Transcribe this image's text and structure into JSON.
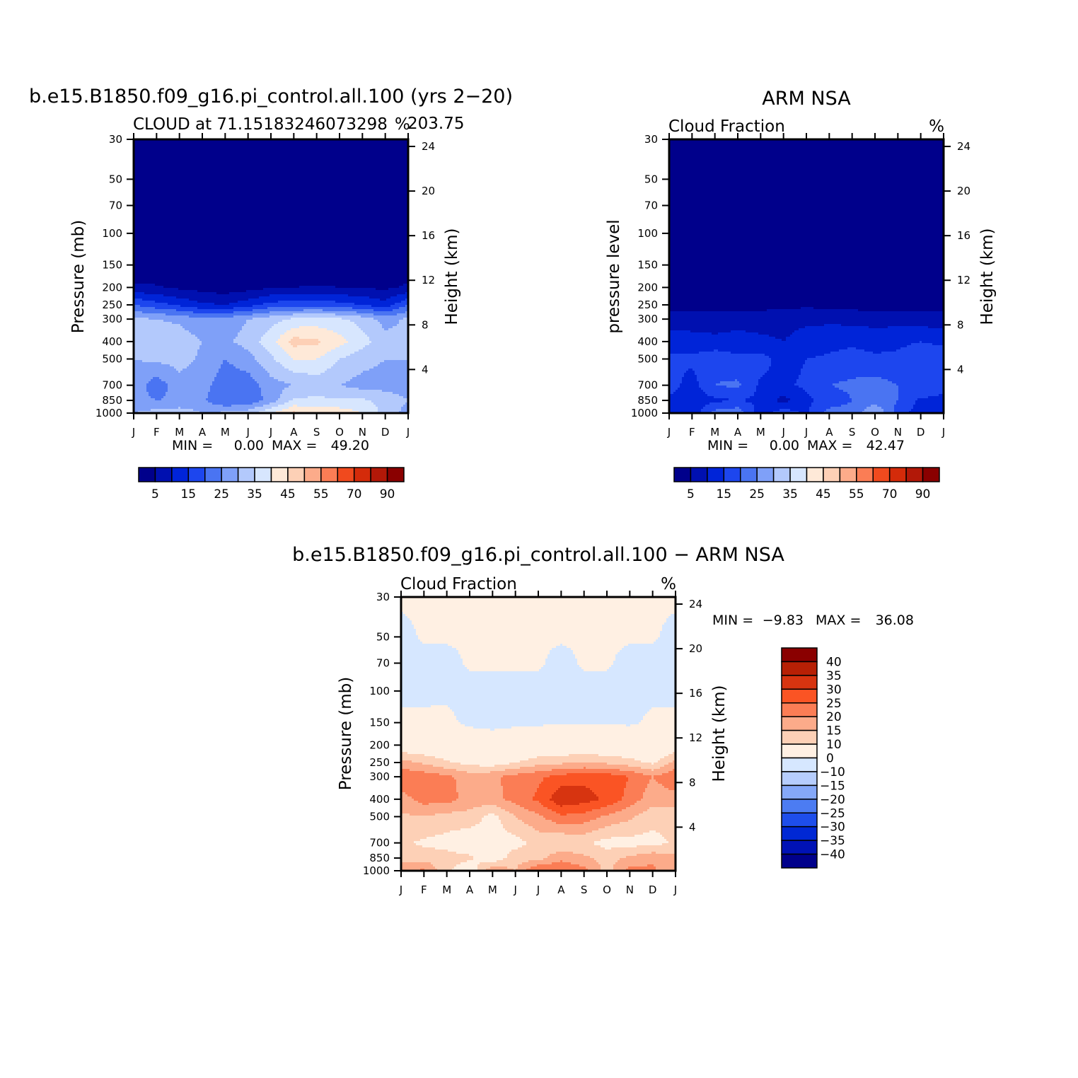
{
  "palette": {
    "abs": [
      "#00008b",
      "#0010b0",
      "#0024d8",
      "#1d46ee",
      "#4a74f2",
      "#7fa0f8",
      "#b3c9fc",
      "#d7e6fe",
      "#fee9d8",
      "#fdd0b6",
      "#fcab8a",
      "#fb7d55",
      "#f04a1e",
      "#d42b0a",
      "#b21808",
      "#8a0000"
    ],
    "diff": [
      "#00008b",
      "#0012b5",
      "#0028d4",
      "#1e4eeb",
      "#4c7cf2",
      "#85a8f8",
      "#b6cdfd",
      "#d6e7ff",
      "#fff0e3",
      "#fdd0b6",
      "#fcab8a",
      "#fb7d55",
      "#fa5424",
      "#d73410",
      "#b72005",
      "#8a0000"
    ]
  },
  "chart_data": [
    {
      "id": "model",
      "type": "contour",
      "title": "b.e15.B1850.f09_g16.pi_control.all.100 (yrs 2−20)",
      "subtitle_left": "CLOUD at 71.15183246073298",
      "subtitle_overlap": "%",
      "subtitle_right": "203.75",
      "ylabel": "Pressure (mb)",
      "ylabel_right": "Height (km)",
      "months": [
        "J",
        "F",
        "M",
        "A",
        "M",
        "J",
        "J",
        "A",
        "S",
        "O",
        "N",
        "D",
        "J"
      ],
      "pressure_levels": [
        30,
        50,
        70,
        100,
        150,
        200,
        250,
        300,
        400,
        500,
        700,
        850,
        1000
      ],
      "pressure_ticks": [
        "30",
        "50",
        "70",
        "100",
        "150",
        "200",
        "250",
        "300",
        "400",
        "500",
        "700",
        "850",
        "1000"
      ],
      "height_ticks_km": [
        24,
        20,
        16,
        12,
        8,
        4
      ],
      "height_tick_labels": [
        "24",
        "20",
        "16",
        "12",
        "8",
        "4"
      ],
      "levels": [
        5,
        10,
        15,
        20,
        25,
        30,
        35,
        40,
        45,
        50,
        55,
        60,
        70,
        80,
        90
      ],
      "colorbar_labels": [
        "5",
        "15",
        "25",
        "35",
        "45",
        "55",
        "70",
        "90"
      ],
      "min_label": "MIN =",
      "min_value": "0.00",
      "max_label": "MAX =",
      "max_value": "49.20",
      "values_percent": [
        [
          0,
          0,
          0,
          0,
          0,
          0,
          0,
          0,
          0,
          0,
          0,
          0,
          0
        ],
        [
          0,
          0,
          0,
          0,
          0,
          0,
          0,
          0,
          0,
          0,
          0,
          0,
          0
        ],
        [
          0,
          0,
          0,
          0,
          0,
          0,
          0,
          0,
          0,
          0,
          0,
          0,
          0
        ],
        [
          0,
          0,
          0,
          0,
          0,
          0,
          0,
          0,
          0,
          0,
          0,
          0,
          0
        ],
        [
          1,
          1,
          1,
          0.5,
          0.5,
          0.5,
          0.5,
          1,
          1,
          1,
          1,
          0.5,
          1
        ],
        [
          6,
          5.5,
          4,
          3,
          2,
          3,
          4.5,
          5,
          5.5,
          5,
          4.5,
          4,
          6
        ],
        [
          20,
          17,
          14,
          11,
          10,
          13,
          17,
          18,
          18.5,
          17,
          15,
          12,
          20
        ],
        [
          31,
          30,
          29,
          26,
          27,
          30,
          33,
          36,
          37,
          36,
          33,
          28,
          31
        ],
        [
          31,
          34,
          33,
          30,
          29,
          32,
          38,
          47,
          46,
          42,
          37,
          32,
          31
        ],
        [
          30,
          31,
          32,
          29,
          25,
          28,
          34,
          40,
          40,
          35,
          32,
          30,
          30
        ],
        [
          28,
          22,
          28,
          27,
          22,
          22,
          28,
          30,
          32,
          30,
          28,
          28,
          28
        ],
        [
          27,
          25,
          26,
          26,
          20,
          21,
          27,
          36,
          36,
          36,
          36,
          33,
          30
        ],
        [
          30,
          32,
          33,
          30,
          31,
          33,
          40,
          46,
          44,
          43,
          40,
          33,
          28
        ]
      ]
    },
    {
      "id": "obs",
      "type": "contour",
      "title": "ARM NSA",
      "subtitle_left": "Cloud Fraction",
      "subtitle_right": "%",
      "ylabel": "pressure level",
      "ylabel_right": "Height (km)",
      "months": [
        "J",
        "F",
        "M",
        "A",
        "M",
        "J",
        "J",
        "A",
        "S",
        "O",
        "N",
        "D",
        "J"
      ],
      "pressure_levels": [
        30,
        50,
        70,
        100,
        150,
        200,
        250,
        300,
        400,
        500,
        700,
        850,
        1000
      ],
      "pressure_ticks": [
        "30",
        "50",
        "70",
        "100",
        "150",
        "200",
        "250",
        "300",
        "400",
        "500",
        "700",
        "850",
        "1000"
      ],
      "height_ticks_km": [
        24,
        20,
        16,
        12,
        8,
        4
      ],
      "height_tick_labels": [
        "24",
        "20",
        "16",
        "12",
        "8",
        "4"
      ],
      "levels": [
        5,
        10,
        15,
        20,
        25,
        30,
        35,
        40,
        45,
        50,
        55,
        60,
        70,
        80,
        90
      ],
      "colorbar_labels": [
        "5",
        "15",
        "25",
        "35",
        "45",
        "55",
        "70",
        "90"
      ],
      "min_label": "MIN =",
      "min_value": "0.00",
      "max_label": "MAX =",
      "max_value": "42.47",
      "values_percent": [
        [
          0,
          0,
          0,
          0,
          0,
          0,
          0,
          0,
          0,
          0,
          0,
          0,
          0
        ],
        [
          0,
          0,
          0,
          0,
          0,
          0,
          0,
          0,
          0,
          0,
          0,
          0,
          0
        ],
        [
          0,
          0,
          0,
          0,
          0,
          0,
          0,
          0,
          0,
          0,
          0,
          0,
          0
        ],
        [
          0,
          0,
          0,
          0,
          0,
          0,
          0,
          0,
          0,
          0,
          0,
          0,
          0
        ],
        [
          0,
          0,
          0,
          0,
          0,
          0,
          0,
          0,
          0,
          0,
          0,
          0,
          0
        ],
        [
          1,
          1,
          1,
          1,
          1,
          1,
          1,
          1,
          1,
          1,
          1,
          1,
          1
        ],
        [
          3,
          3,
          3,
          3,
          3,
          3.5,
          4,
          3.5,
          3,
          3,
          3,
          3,
          3
        ],
        [
          7,
          7.5,
          8,
          8,
          8,
          8.5,
          9,
          9,
          8.5,
          8,
          8,
          7.5,
          7
        ],
        [
          13,
          12,
          11,
          12,
          11,
          10,
          12,
          13,
          14,
          13,
          14,
          15,
          14
        ],
        [
          16,
          16,
          19,
          16,
          17,
          13,
          15,
          16,
          17,
          16,
          16,
          18,
          18
        ],
        [
          17,
          13,
          20,
          21,
          14,
          14,
          16,
          20,
          21,
          22,
          20,
          20,
          16
        ],
        [
          14,
          12,
          14,
          15,
          14,
          8,
          14,
          17,
          20,
          23,
          20,
          14,
          14
        ],
        [
          12,
          11,
          22,
          24,
          12,
          18,
          14,
          22,
          22,
          30,
          18,
          12,
          12
        ]
      ]
    },
    {
      "id": "diff",
      "type": "contour",
      "title": "b.e15.B1850.f09_g16.pi_control.all.100 − ARM NSA",
      "subtitle_left": "Cloud Fraction",
      "subtitle_right": "%",
      "ylabel": "Pressure (mb)",
      "ylabel_right": "Height (km)",
      "months": [
        "J",
        "F",
        "M",
        "A",
        "M",
        "J",
        "J",
        "A",
        "S",
        "O",
        "N",
        "D",
        "J"
      ],
      "pressure_levels": [
        30,
        50,
        70,
        100,
        150,
        200,
        250,
        300,
        400,
        500,
        700,
        850,
        1000
      ],
      "pressure_ticks": [
        "30",
        "50",
        "70",
        "100",
        "150",
        "200",
        "250",
        "300",
        "400",
        "500",
        "700",
        "850",
        "1000"
      ],
      "height_ticks_km": [
        24,
        20,
        16,
        12,
        8,
        4
      ],
      "height_tick_labels": [
        "24",
        "20",
        "16",
        "12",
        "8",
        "4"
      ],
      "levels": [
        -40,
        -35,
        -30,
        -25,
        -20,
        -15,
        -10,
        0,
        10,
        15,
        20,
        25,
        30,
        35,
        40
      ],
      "colorbar_labels": [
        "40",
        "35",
        "30",
        "25",
        "20",
        "15",
        "10",
        "0",
        "−10",
        "−15",
        "−20",
        "−25",
        "−30",
        "−35",
        "−40"
      ],
      "min_label": "MIN =",
      "min_value": "−9.83",
      "max_label": "MAX =",
      "max_value": "36.08",
      "values_percent": [
        [
          0.3,
          0.3,
          0.3,
          0.3,
          0.3,
          0.3,
          0.3,
          0.3,
          0.3,
          0.3,
          0.3,
          0.3,
          0.3
        ],
        [
          -0.5,
          0.2,
          0.2,
          0.2,
          0.2,
          0.2,
          0.2,
          0.2,
          0.2,
          0.2,
          0.2,
          0.2,
          -0.5
        ],
        [
          -0.5,
          -0.5,
          -0.5,
          0.2,
          0.2,
          0.2,
          0.2,
          -0.5,
          0.2,
          0.2,
          -0.5,
          -0.5,
          -0.5
        ],
        [
          -0.5,
          -0.5,
          -0.4,
          -0.5,
          -0.5,
          -0.5,
          -0.5,
          -0.5,
          -0.5,
          -0.5,
          -0.5,
          -0.5,
          -0.5
        ],
        [
          0.5,
          0.5,
          0.5,
          -0.5,
          -0.5,
          -0.5,
          -0.5,
          -0.5,
          -0.5,
          -0.5,
          -0.5,
          0.5,
          0.5
        ],
        [
          5,
          5,
          3,
          2,
          1,
          2,
          3.5,
          4,
          4.5,
          4,
          3.5,
          2,
          5
        ],
        [
          17,
          14,
          11,
          8,
          7,
          10,
          13,
          14,
          15,
          14,
          12,
          9,
          17
        ],
        [
          24,
          23,
          21,
          18,
          19,
          22,
          24,
          27,
          28.5,
          28,
          25,
          20,
          24
        ],
        [
          18,
          22,
          22,
          18,
          18,
          22,
          26,
          34,
          32,
          29,
          23,
          17,
          18
        ],
        [
          14,
          15,
          13,
          13,
          8,
          15,
          19,
          24,
          23,
          19,
          16,
          12,
          12
        ],
        [
          11,
          9,
          8,
          6,
          8,
          8,
          12,
          10,
          11,
          8,
          8,
          8,
          11
        ],
        [
          13,
          13,
          12,
          11,
          6,
          13,
          13,
          19,
          16,
          13,
          16,
          19,
          16
        ],
        [
          18,
          21,
          11,
          6,
          19,
          15,
          26,
          24,
          22,
          13,
          22,
          21,
          16
        ]
      ]
    }
  ]
}
